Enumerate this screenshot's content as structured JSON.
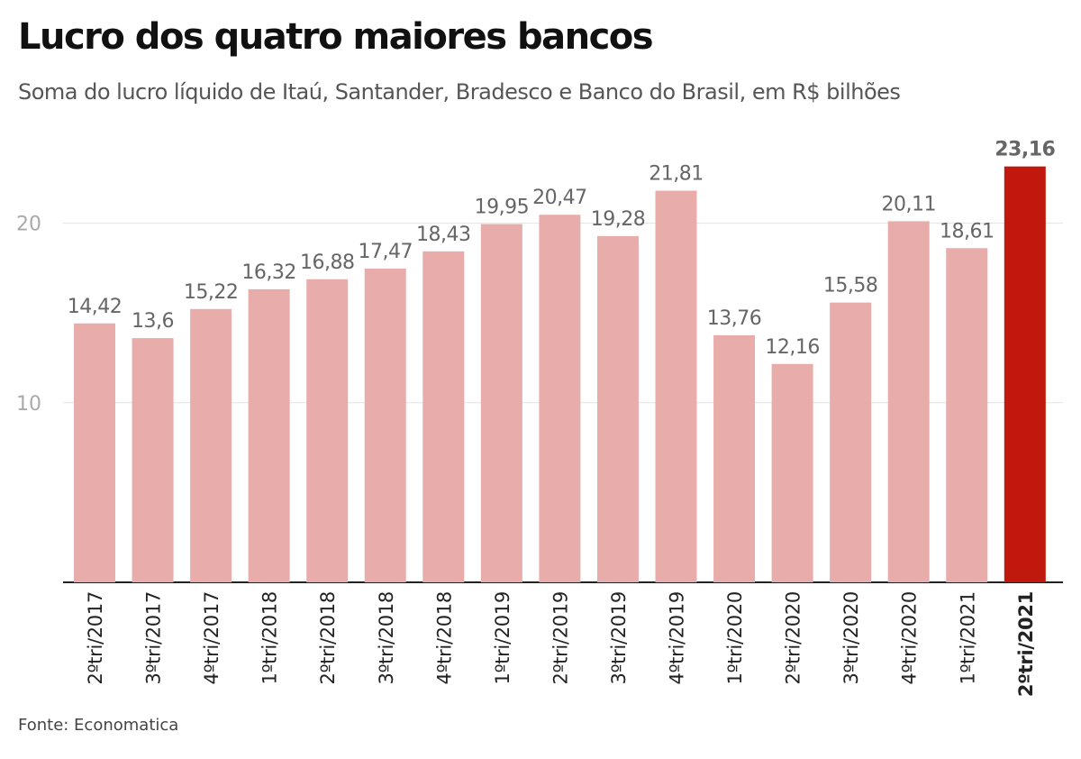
{
  "title": "Lucro dos quatro maiores bancos",
  "subtitle": "Soma do lucro líquido de Itaú, Santander, Bradesco e Banco do Brasil, em R$ bilhões",
  "source": "Fonte: Economatica",
  "colors": {
    "bar": "#e8adab",
    "highlight": "#c0180c",
    "label": "#666666",
    "highlight_label": "#666666",
    "grid": "#e2e2e2",
    "tick": "#aaaaaa",
    "axis": "#222222"
  },
  "chart_data": {
    "type": "bar",
    "categories": [
      "2ºtri/2017",
      "3ºtri/2017",
      "4ºtri/2017",
      "1ºtri/2018",
      "2ºtri/2018",
      "3ºtri/2018",
      "4ºtri/2018",
      "1ºtri/2019",
      "2ºtri/2019",
      "3ºtri/2019",
      "4ºtri/2019",
      "1ºtri/2020",
      "2ºtri/2020",
      "3ºtri/2020",
      "4ºtri/2020",
      "1ºtri/2021",
      "2ºtri/2021"
    ],
    "values": [
      14.42,
      13.6,
      15.22,
      16.32,
      16.88,
      17.47,
      18.43,
      19.95,
      20.47,
      19.28,
      21.81,
      13.76,
      12.16,
      15.58,
      20.11,
      18.61,
      23.16
    ],
    "value_labels": [
      "14,42",
      "13,6",
      "15,22",
      "16,32",
      "16,88",
      "17,47",
      "18,43",
      "19,95",
      "20,47",
      "19,28",
      "21,81",
      "13,76",
      "12,16",
      "15,58",
      "20,11",
      "18,61",
      "23,16"
    ],
    "highlight_index": 16,
    "yticks": [
      10,
      20
    ],
    "ylim": [
      0,
      23.16
    ],
    "grid": true,
    "legend": "none"
  }
}
